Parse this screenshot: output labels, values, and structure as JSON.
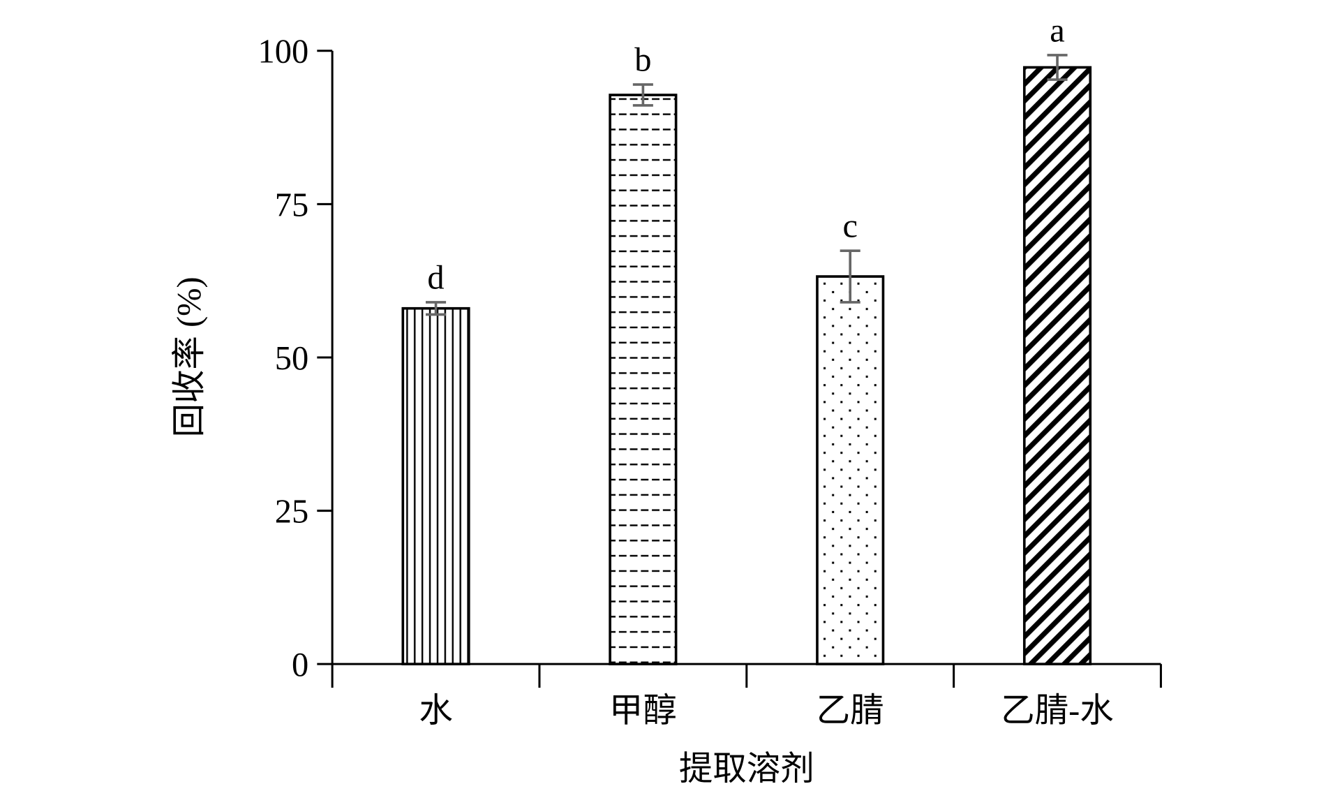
{
  "chart_data": {
    "type": "bar",
    "title": "",
    "xlabel": "提取溶剂",
    "ylabel": "回收率 (%)",
    "ylim": [
      0,
      100
    ],
    "yticks": [
      0,
      25,
      50,
      75,
      100
    ],
    "ytick_labels": [
      "0",
      "25",
      "50",
      "75",
      "100"
    ],
    "categories": [
      "水",
      "甲醇",
      "乙腈",
      "乙腈-水"
    ],
    "values": [
      58.0,
      92.8,
      63.2,
      97.3
    ],
    "errors": [
      1.0,
      1.7,
      4.2,
      2.0
    ],
    "significance_labels": [
      "d",
      "b",
      "c",
      "a"
    ],
    "fill_patterns": [
      "vertical-lines",
      "dashes",
      "dots",
      "diagonal-stripes"
    ],
    "grid": false,
    "colors": {
      "bar_edge": "#000000",
      "error_bar": "#666666"
    }
  }
}
